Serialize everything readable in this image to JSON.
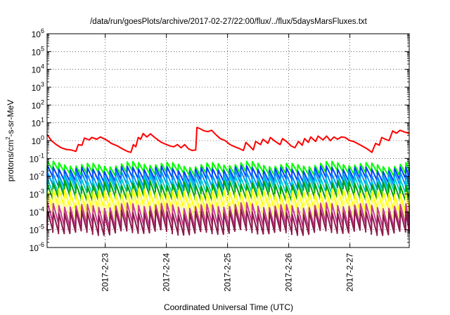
{
  "chart_data": {
    "type": "line",
    "title": "/data/run/goesPlots/archive/2017-02-27/22:00/flux/../flux/5daysMarsFluxes.txt",
    "xlabel": "Coordinated Universal Time (UTC)",
    "ylabel": {
      "base": "protons/cm",
      "sup": "2",
      "rest": "-s-sr-MeV"
    },
    "yscale": "log",
    "ylim_exp": [
      -6,
      6
    ],
    "y_tick_exponents": [
      -6,
      -5,
      -4,
      -3,
      -2,
      -1,
      0,
      1,
      2,
      3,
      4,
      5,
      6
    ],
    "y_tick_base": "10",
    "xlim_days": [
      22.05,
      27.97
    ],
    "x_ticks": [
      {
        "label": "2017-2-23",
        "day": 23
      },
      {
        "label": "2017-2-24",
        "day": 24
      },
      {
        "label": "2017-2-25",
        "day": 25
      },
      {
        "label": "2017-2-26",
        "day": 26
      },
      {
        "label": "2017-2-27",
        "day": 27
      }
    ],
    "grid": true,
    "legend": "none",
    "series": [
      {
        "color": "#ff0000",
        "x": [
          22.05,
          22.12,
          22.2,
          22.28,
          22.36,
          22.44,
          22.52,
          22.56,
          22.62,
          22.66,
          22.74,
          22.78,
          22.86,
          22.92,
          23.02,
          23.1,
          23.2,
          23.28,
          23.36,
          23.42,
          23.46,
          23.5,
          23.54,
          23.58,
          23.62,
          23.68,
          23.74,
          23.8,
          23.86,
          23.92,
          24.0,
          24.06,
          24.12,
          24.18,
          24.24,
          24.3,
          24.36,
          24.42,
          24.48,
          24.5,
          24.56,
          24.62,
          24.68,
          24.74,
          24.82,
          24.88,
          24.96,
          25.04,
          25.12,
          25.2,
          25.26,
          25.3,
          25.36,
          25.42,
          25.46,
          25.54,
          25.58,
          25.66,
          25.7,
          25.78,
          25.86,
          25.9,
          25.98,
          26.04,
          26.1,
          26.16,
          26.22,
          26.26,
          26.32,
          26.36,
          26.44,
          26.48,
          26.56,
          26.62,
          26.68,
          26.74,
          26.8,
          26.86,
          26.92,
          27.0,
          27.06,
          27.12,
          27.2,
          27.28,
          27.36,
          27.42,
          27.48,
          27.52,
          27.58,
          27.64,
          27.7,
          27.76,
          27.82,
          27.9,
          27.97
        ],
        "y": [
          2.2,
          1.0,
          0.6,
          0.4,
          0.32,
          0.3,
          0.25,
          0.6,
          0.55,
          1.4,
          1.1,
          1.5,
          1.2,
          1.6,
          1.1,
          0.7,
          0.5,
          0.35,
          0.25,
          0.22,
          0.6,
          0.45,
          1.5,
          1.2,
          2.5,
          1.6,
          2.4,
          1.6,
          1.1,
          0.8,
          0.6,
          0.5,
          0.45,
          0.6,
          0.4,
          0.6,
          0.35,
          0.28,
          0.3,
          5.5,
          4.5,
          3.5,
          3.2,
          3.8,
          2.0,
          1.3,
          1.0,
          0.6,
          0.45,
          0.35,
          0.28,
          0.8,
          0.5,
          0.3,
          0.9,
          0.6,
          1.2,
          0.7,
          1.5,
          0.9,
          0.6,
          1.3,
          0.8,
          0.5,
          0.4,
          0.9,
          0.55,
          1.3,
          0.8,
          1.6,
          0.9,
          1.8,
          1.1,
          1.8,
          1.0,
          1.6,
          1.2,
          1.6,
          1.5,
          1.0,
          0.9,
          0.7,
          0.5,
          0.35,
          0.22,
          0.7,
          0.55,
          1.5,
          1.2,
          1.0,
          3.5,
          2.6,
          3.8,
          3.0,
          2.5
        ]
      },
      {
        "color": "#00ff00",
        "base": -1.55,
        "amp": 0.45,
        "drop": 0.2
      },
      {
        "color": "#0040ff",
        "base": -1.85,
        "amp": 0.55,
        "drop": 0.25
      },
      {
        "color": "#0090ff",
        "base": -2.15,
        "amp": 0.6,
        "drop": 0.35
      },
      {
        "color": "#00d0d0",
        "base": -2.45,
        "amp": 0.65,
        "drop": 0.4
      },
      {
        "color": "#00a000",
        "base": -2.75,
        "amp": 0.7,
        "drop": 0.45
      },
      {
        "color": "#ffff00",
        "base": -3.3,
        "amp": 0.85,
        "drop": 0.5
      },
      {
        "color": "#ffff80",
        "base": -3.7,
        "amp": 0.85,
        "drop": 0.6
      },
      {
        "color": "#c83c96",
        "base": -4.1,
        "amp": 0.9,
        "drop": 0.75
      },
      {
        "color": "#8b1a4a",
        "base": -4.45,
        "amp": 0.85,
        "drop": 0.9
      }
    ],
    "decay_period_days": 0.093
  }
}
